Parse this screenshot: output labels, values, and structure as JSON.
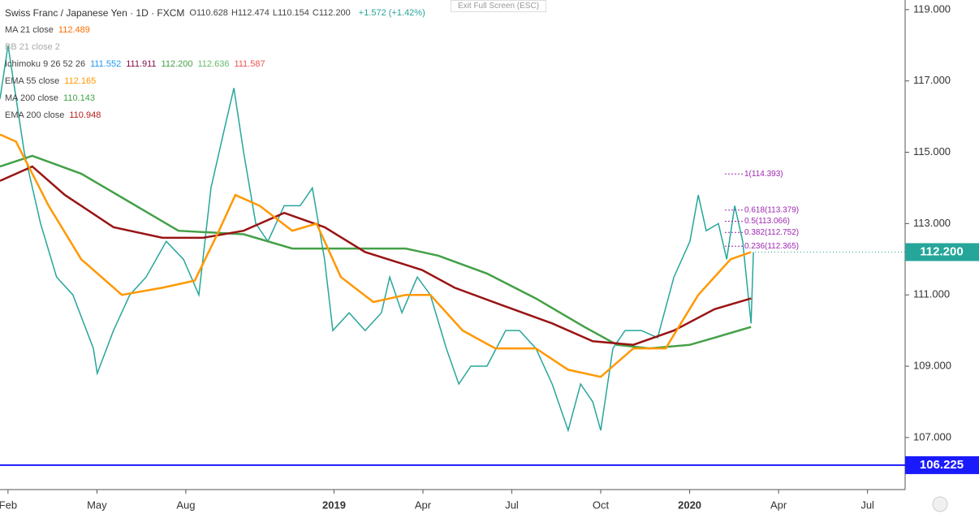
{
  "chart_data": {
    "type": "line",
    "title": "Swiss Franc / Japanese Yen · 1D · FXCM",
    "ohlc": [
      "O110.628",
      "H112.474",
      "L110.154",
      "C112.200"
    ],
    "change": "+1.572 (+1.42%)",
    "exit_button": "Exit Full Screen (ESC)",
    "indicators": [
      {
        "name": "MA 21 close",
        "values": [
          112.489
        ],
        "colors": [
          "#ff6d00"
        ]
      },
      {
        "name": "BB 21 close 2",
        "values": [],
        "colors": []
      },
      {
        "name": "Ichimoku 9 26 52 26",
        "values": [
          111.552,
          111.911,
          {
            "value": 112.2,
            "label": "112.200"
          },
          112.636,
          111.587
        ],
        "colors": [
          "#2196f3",
          "#880e4f",
          "#43a047",
          "#66bb6a",
          "#ef5350"
        ]
      },
      {
        "name": "EMA 55 close",
        "values": [
          112.165
        ],
        "colors": [
          "#ff9800"
        ]
      },
      {
        "name": "MA 200 close",
        "values": [
          110.143
        ],
        "colors": [
          "#43a047"
        ]
      },
      {
        "name": "EMA 200 close",
        "values": [
          110.948
        ],
        "colors": [
          "#b71c1c"
        ]
      }
    ],
    "xlim": [
      -0.27,
      30.27
    ],
    "ylim": [
      105.54,
      119.27
    ],
    "xticks": [
      {
        "value": 0,
        "label": "Feb"
      },
      {
        "value": 3,
        "label": "May"
      },
      {
        "value": 6,
        "label": "Aug"
      },
      {
        "value": 11,
        "label": "2019"
      },
      {
        "value": 14,
        "label": "Apr"
      },
      {
        "value": 17,
        "label": "Jul"
      },
      {
        "value": 20,
        "label": "Oct"
      },
      {
        "value": 23,
        "label": "2020"
      },
      {
        "value": 26,
        "label": "Apr"
      },
      {
        "value": 29,
        "label": "Jul"
      }
    ],
    "yticks": [
      {
        "value": 107,
        "label": "107.000"
      },
      {
        "value": 109,
        "label": "109.000"
      },
      {
        "value": 111,
        "label": "111.000"
      },
      {
        "value": 113,
        "label": "113.000"
      },
      {
        "value": 115,
        "label": "115.000"
      },
      {
        "value": 117,
        "label": "117.000"
      },
      {
        "value": 119,
        "label": "119.000"
      }
    ],
    "series": [
      {
        "name": "Close",
        "color": "#26a69a",
        "x": [
          -0.27,
          0,
          0.55,
          1.1,
          1.64,
          2.19,
          2.88,
          3.01,
          3.56,
          4.11,
          4.66,
          5.34,
          5.92,
          6.44,
          6.85,
          7.26,
          7.62,
          7.95,
          8.36,
          8.77,
          9.32,
          9.86,
          10.27,
          10.68,
          10.96,
          11.51,
          12.05,
          12.6,
          12.88,
          13.29,
          13.81,
          14.25,
          14.79,
          15.21,
          15.62,
          16.16,
          16.79,
          17.26,
          17.81,
          18.36,
          18.9,
          19.32,
          19.73,
          20,
          20.41,
          20.82,
          21.37,
          21.92,
          22.47,
          23.01,
          23.29,
          23.56,
          23.97,
          24.25,
          24.52,
          24.79,
          25.07,
          25.15
        ],
        "values": [
          116.5,
          118,
          115,
          113,
          111.5,
          111,
          109.5,
          108.8,
          110,
          111,
          111.5,
          112.5,
          112,
          111,
          114,
          115.5,
          116.8,
          115,
          113,
          112.5,
          113.5,
          113.5,
          114,
          112,
          110,
          110.5,
          110,
          110.5,
          111.5,
          110.5,
          111.5,
          111,
          109.5,
          108.5,
          109,
          109,
          110,
          110,
          109.5,
          108.5,
          107.2,
          108.5,
          108,
          107.2,
          109.5,
          110,
          110,
          109.8,
          111.5,
          112.5,
          113.8,
          112.8,
          113,
          112,
          113.5,
          112.5,
          110.2,
          112.2
        ]
      },
      {
        "name": "MA 200 close",
        "color": "#43a047",
        "x": [
          -0.27,
          0.82,
          2.47,
          4.11,
          5.75,
          7.95,
          9.59,
          11.23,
          13.42,
          14.52,
          16.16,
          17.81,
          19.45,
          20.55,
          21.64,
          23.01,
          23.84,
          25.07
        ],
        "values": [
          114.6,
          114.9,
          114.4,
          113.6,
          112.8,
          112.7,
          112.3,
          112.3,
          112.3,
          112.1,
          111.6,
          110.9,
          110.1,
          109.6,
          109.5,
          109.6,
          109.8,
          110.1
        ]
      },
      {
        "name": "EMA 200 close",
        "color": "#9a1414",
        "x": [
          -0.27,
          0.82,
          1.92,
          3.56,
          5.21,
          6.58,
          7.95,
          9.32,
          10.68,
          12.05,
          13.97,
          15.07,
          16.71,
          18.36,
          19.73,
          21.1,
          22.47,
          23.84,
          25.07
        ],
        "values": [
          114.2,
          114.6,
          113.8,
          112.9,
          112.6,
          112.6,
          112.8,
          113.3,
          112.9,
          112.2,
          111.7,
          111.2,
          110.7,
          110.2,
          109.7,
          109.6,
          110,
          110.6,
          110.9
        ]
      },
      {
        "name": "EMA 55 close",
        "color": "#ff9800",
        "x": [
          -0.27,
          0.27,
          1.37,
          2.47,
          3.84,
          5.21,
          6.3,
          7.12,
          7.67,
          8.49,
          9.59,
          10.41,
          11.23,
          12.33,
          13.42,
          14.25,
          15.34,
          16.44,
          17.81,
          18.9,
          20,
          21.1,
          22.19,
          23.29,
          24.38,
          25.07
        ],
        "values": [
          115.5,
          115.3,
          113.5,
          112,
          111,
          111.2,
          111.4,
          112.8,
          113.8,
          113.5,
          112.8,
          113,
          111.5,
          110.8,
          111,
          111,
          110,
          109.5,
          109.5,
          108.9,
          108.7,
          109.5,
          109.5,
          111,
          112,
          112.2
        ]
      }
    ],
    "fib_levels": [
      {
        "value": 114.393,
        "label": "1(114.393)"
      },
      {
        "value": 113.379,
        "label": "0.618(113.379)"
      },
      {
        "value": 113.066,
        "label": "0.5(113.066)"
      },
      {
        "value": 112.752,
        "label": "0.382(112.752)"
      },
      {
        "value": 112.365,
        "label": "0.236(112.365)"
      }
    ],
    "last_price": {
      "value": 112.2,
      "label": "112.200"
    },
    "horizontal_line": {
      "value": 106.225,
      "label": "106.225"
    }
  }
}
